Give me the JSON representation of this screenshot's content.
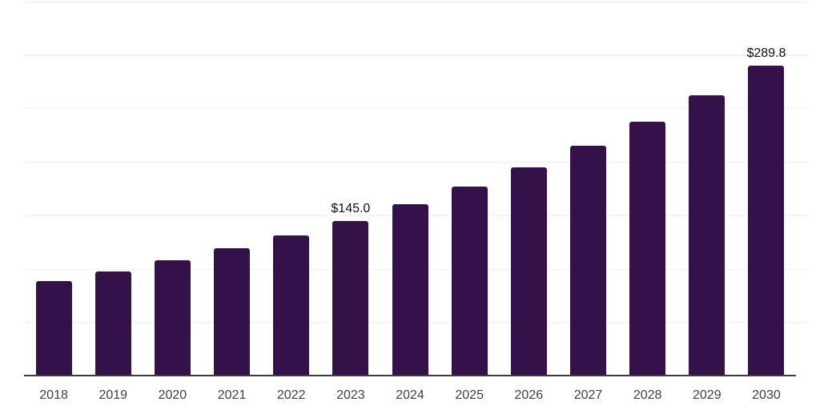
{
  "chart_data": {
    "type": "bar",
    "title": "",
    "xlabel": "",
    "ylabel": "",
    "categories": [
      "2018",
      "2019",
      "2020",
      "2021",
      "2022",
      "2023",
      "2024",
      "2025",
      "2026",
      "2027",
      "2028",
      "2029",
      "2030"
    ],
    "values": [
      88.4,
      97.6,
      107.7,
      118.9,
      131.3,
      145.0,
      160.1,
      176.7,
      195.1,
      215.4,
      237.8,
      262.5,
      289.8
    ],
    "value_labels": {
      "2023": "$145.0",
      "2030": "$289.8"
    },
    "ylim": [
      0,
      350
    ],
    "gridline_step": 50,
    "grid": true,
    "legend": false,
    "y_axis_tick_labels_visible": false,
    "colors": {
      "bar": "#341149",
      "gridline": "#f0f0f0",
      "axis_line": "#3d3d3d",
      "x_tick_label": "#404040",
      "value_label": "#0f0f0f",
      "background": "#ffffff"
    }
  }
}
